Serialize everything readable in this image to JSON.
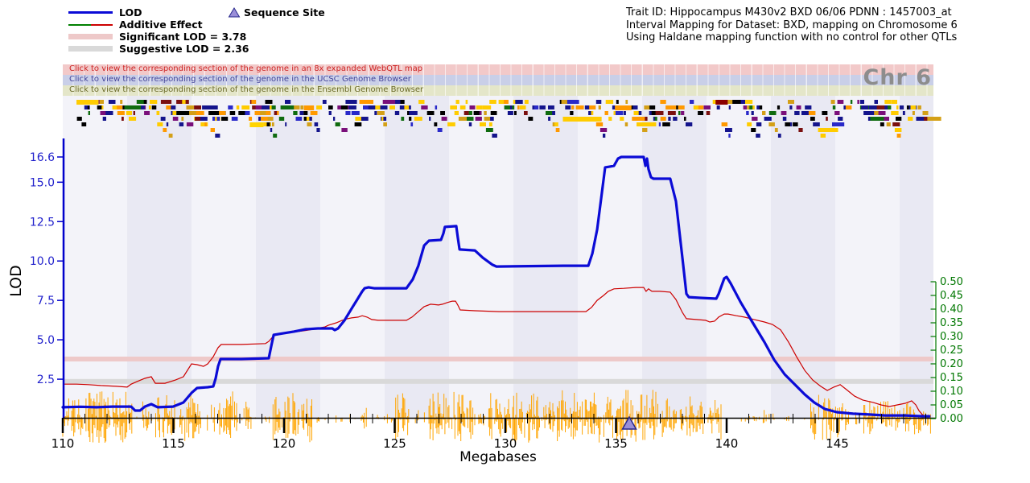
{
  "header": {
    "trait_line1": "Trait ID: Hippocampus M430v2 BXD 06/06 PDNN : 1457003_at",
    "trait_line2": "Interval Mapping for Dataset: BXD, mapping on Chromosome 6",
    "trait_line3": "Using Haldane mapping function with no control for other QTLs"
  },
  "legend": {
    "lod_label": "LOD",
    "additive_label": "Additive Effect",
    "significant_label": "Significant LOD = 3.78",
    "suggestive_label": "Suggestive LOD = 2.36",
    "sequence_site_label": "Sequence Site"
  },
  "banners": [
    {
      "text": "Click to view the corresponding section of the genome in an 8x expanded WebQTL map",
      "bg": "#f2c9c9",
      "color": "#cc2222"
    },
    {
      "text": "Click to view the corresponding section of the genome in the UCSC Genome Browser",
      "bg": "#c9cfe8",
      "color": "#444499"
    },
    {
      "text": "Click to view the corresponding section of the genome in the Ensembl Genome Browser",
      "bg": "#e4e6c9",
      "color": "#6b6b2a"
    }
  ],
  "chr_label": "Chr 6",
  "colors": {
    "lod": "#0b0bd6",
    "additive": "#cc0000",
    "additive_legend_left": "#008000",
    "significant_band": "#eec9c9",
    "suggestive_band": "#d9d9d9",
    "snp_track": "#ffa500",
    "lod_axis_labels": "#2222cc",
    "additive_axis": "#007700",
    "x_axis": "#000000",
    "triangle_fill": "#9a8fd8",
    "triangle_stroke": "#28288c",
    "band_light": "#f3f3f9",
    "band_dark": "#e9e9f3"
  },
  "chart_data": {
    "type": "line",
    "xlabel": "Megabases",
    "ylabel_left": "LOD",
    "x_range_mb": [
      110,
      149.35
    ],
    "x_major_ticks": [
      110,
      115,
      120,
      125,
      130,
      135,
      140,
      145
    ],
    "lod_ticks": [
      2.5,
      5.0,
      7.5,
      10.0,
      12.5,
      15.0,
      16.6
    ],
    "additive_ticks": [
      0.0,
      0.05,
      0.1,
      0.15,
      0.2,
      0.25,
      0.3,
      0.35,
      0.4,
      0.45,
      0.5
    ],
    "significant_lod": 3.78,
    "suggestive_lod": 2.36,
    "max_lod": 16.6,
    "sequence_site_mb": 135.6,
    "series": [
      {
        "name": "LOD",
        "axis": "left",
        "points": [
          [
            110,
            0.72
          ],
          [
            110.8,
            0.75
          ],
          [
            111.53,
            0.72
          ],
          [
            112.25,
            0.76
          ],
          [
            113.09,
            0.76
          ],
          [
            113.27,
            0.51
          ],
          [
            113.49,
            0.51
          ],
          [
            113.71,
            0.76
          ],
          [
            114,
            0.92
          ],
          [
            114.29,
            0.72
          ],
          [
            114.98,
            0.76
          ],
          [
            115.45,
            1.02
          ],
          [
            115.82,
            1.63
          ],
          [
            116.07,
            1.94
          ],
          [
            116.55,
            1.99
          ],
          [
            116.8,
            2.04
          ],
          [
            116.91,
            2.55
          ],
          [
            117.02,
            3.32
          ],
          [
            117.13,
            3.78
          ],
          [
            118.07,
            3.78
          ],
          [
            119.31,
            3.83
          ],
          [
            119.42,
            4.6
          ],
          [
            119.53,
            5.31
          ],
          [
            119.96,
            5.41
          ],
          [
            120.44,
            5.52
          ],
          [
            120.98,
            5.67
          ],
          [
            121.53,
            5.72
          ],
          [
            122.18,
            5.72
          ],
          [
            122.29,
            5.62
          ],
          [
            122.44,
            5.72
          ],
          [
            122.73,
            6.23
          ],
          [
            123.02,
            6.9
          ],
          [
            123.31,
            7.56
          ],
          [
            123.53,
            8.07
          ],
          [
            123.64,
            8.27
          ],
          [
            123.82,
            8.33
          ],
          [
            124.07,
            8.27
          ],
          [
            125.53,
            8.27
          ],
          [
            125.82,
            8.84
          ],
          [
            126.07,
            9.7
          ],
          [
            126.33,
            10.98
          ],
          [
            126.55,
            11.29
          ],
          [
            127.09,
            11.34
          ],
          [
            127.2,
            11.75
          ],
          [
            127.27,
            12.16
          ],
          [
            127.78,
            12.21
          ],
          [
            127.85,
            11.49
          ],
          [
            127.93,
            10.73
          ],
          [
            128.62,
            10.67
          ],
          [
            128.98,
            10.21
          ],
          [
            129.42,
            9.76
          ],
          [
            129.6,
            9.65
          ],
          [
            132.62,
            9.7
          ],
          [
            133.75,
            9.7
          ],
          [
            133.93,
            10.47
          ],
          [
            134.15,
            12
          ],
          [
            134.36,
            14.3
          ],
          [
            134.51,
            15.94
          ],
          [
            134.73,
            15.99
          ],
          [
            134.91,
            16.04
          ],
          [
            135.09,
            16.5
          ],
          [
            135.24,
            16.6
          ],
          [
            136.25,
            16.6
          ],
          [
            136.33,
            16.04
          ],
          [
            136.4,
            16.5
          ],
          [
            136.47,
            15.83
          ],
          [
            136.58,
            15.32
          ],
          [
            136.69,
            15.22
          ],
          [
            137.45,
            15.22
          ],
          [
            137.71,
            13.79
          ],
          [
            138,
            10.21
          ],
          [
            138.18,
            7.92
          ],
          [
            138.29,
            7.71
          ],
          [
            138.8,
            7.66
          ],
          [
            139.53,
            7.61
          ],
          [
            139.64,
            7.92
          ],
          [
            139.89,
            8.89
          ],
          [
            140,
            8.99
          ],
          [
            140.18,
            8.58
          ],
          [
            140.62,
            7.41
          ],
          [
            141.16,
            6.13
          ],
          [
            141.71,
            4.85
          ],
          [
            142.15,
            3.73
          ],
          [
            142.62,
            2.81
          ],
          [
            143.09,
            2.15
          ],
          [
            143.53,
            1.53
          ],
          [
            143.96,
            1.02
          ],
          [
            144.44,
            0.61
          ],
          [
            144.98,
            0.41
          ],
          [
            145.71,
            0.31
          ],
          [
            146.44,
            0.26
          ],
          [
            147.16,
            0.2
          ],
          [
            148.07,
            0.2
          ],
          [
            148.91,
            0.15
          ],
          [
            149.16,
            0.15
          ]
        ]
      },
      {
        "name": "Additive Effect",
        "axis": "right",
        "points": [
          [
            110,
            0.126
          ],
          [
            110.62,
            0.126
          ],
          [
            111.16,
            0.124
          ],
          [
            111.71,
            0.121
          ],
          [
            112.44,
            0.118
          ],
          [
            112.91,
            0.115
          ],
          [
            113.09,
            0.126
          ],
          [
            113.35,
            0.135
          ],
          [
            113.71,
            0.147
          ],
          [
            114,
            0.153
          ],
          [
            114.18,
            0.129
          ],
          [
            114.62,
            0.129
          ],
          [
            115.09,
            0.141
          ],
          [
            115.45,
            0.153
          ],
          [
            115.82,
            0.2
          ],
          [
            116.07,
            0.197
          ],
          [
            116.36,
            0.191
          ],
          [
            116.55,
            0.2
          ],
          [
            116.8,
            0.226
          ],
          [
            117.02,
            0.259
          ],
          [
            117.16,
            0.271
          ],
          [
            118.07,
            0.271
          ],
          [
            119.16,
            0.274
          ],
          [
            119.31,
            0.282
          ],
          [
            119.53,
            0.303
          ],
          [
            120.07,
            0.312
          ],
          [
            120.62,
            0.318
          ],
          [
            121.16,
            0.324
          ],
          [
            121.64,
            0.332
          ],
          [
            121.85,
            0.335
          ],
          [
            122,
            0.341
          ],
          [
            122.36,
            0.35
          ],
          [
            122.62,
            0.359
          ],
          [
            122.87,
            0.365
          ],
          [
            123.05,
            0.368
          ],
          [
            123.35,
            0.371
          ],
          [
            123.53,
            0.376
          ],
          [
            123.75,
            0.371
          ],
          [
            123.96,
            0.362
          ],
          [
            124.25,
            0.359
          ],
          [
            125.53,
            0.359
          ],
          [
            125.78,
            0.371
          ],
          [
            126.07,
            0.391
          ],
          [
            126.33,
            0.409
          ],
          [
            126.62,
            0.418
          ],
          [
            126.98,
            0.415
          ],
          [
            127.16,
            0.418
          ],
          [
            127.38,
            0.424
          ],
          [
            127.6,
            0.429
          ],
          [
            127.75,
            0.429
          ],
          [
            127.85,
            0.415
          ],
          [
            127.96,
            0.397
          ],
          [
            128.62,
            0.394
          ],
          [
            129.71,
            0.391
          ],
          [
            131.16,
            0.391
          ],
          [
            132.62,
            0.391
          ],
          [
            133.64,
            0.391
          ],
          [
            133.89,
            0.406
          ],
          [
            134.15,
            0.432
          ],
          [
            134.44,
            0.45
          ],
          [
            134.65,
            0.465
          ],
          [
            134.91,
            0.474
          ],
          [
            135.35,
            0.476
          ],
          [
            135.89,
            0.479
          ],
          [
            136.25,
            0.479
          ],
          [
            136.36,
            0.465
          ],
          [
            136.47,
            0.474
          ],
          [
            136.62,
            0.465
          ],
          [
            136.98,
            0.465
          ],
          [
            137.45,
            0.462
          ],
          [
            137.71,
            0.435
          ],
          [
            138,
            0.388
          ],
          [
            138.18,
            0.365
          ],
          [
            138.62,
            0.362
          ],
          [
            139.05,
            0.359
          ],
          [
            139.24,
            0.353
          ],
          [
            139.45,
            0.356
          ],
          [
            139.64,
            0.371
          ],
          [
            139.89,
            0.382
          ],
          [
            140.07,
            0.382
          ],
          [
            140.44,
            0.376
          ],
          [
            140.8,
            0.371
          ],
          [
            141.24,
            0.362
          ],
          [
            141.71,
            0.353
          ],
          [
            142.07,
            0.344
          ],
          [
            142.44,
            0.324
          ],
          [
            142.8,
            0.279
          ],
          [
            143.16,
            0.226
          ],
          [
            143.53,
            0.176
          ],
          [
            143.89,
            0.141
          ],
          [
            144.25,
            0.118
          ],
          [
            144.55,
            0.103
          ],
          [
            144.84,
            0.115
          ],
          [
            145.13,
            0.124
          ],
          [
            145.42,
            0.106
          ],
          [
            145.78,
            0.082
          ],
          [
            146.15,
            0.068
          ],
          [
            146.62,
            0.059
          ],
          [
            146.98,
            0.05
          ],
          [
            147.35,
            0.044
          ],
          [
            147.71,
            0.05
          ],
          [
            148.07,
            0.056
          ],
          [
            148.36,
            0.065
          ],
          [
            148.55,
            0.05
          ],
          [
            148.69,
            0.029
          ],
          [
            148.84,
            0.015
          ],
          [
            148.95,
            0.009
          ]
        ]
      }
    ],
    "snp_track_segments": [
      [
        110,
        110.95,
        26,
        0.85
      ],
      [
        111.05,
        113.15,
        34,
        0.9
      ],
      [
        113.3,
        114.05,
        22,
        0.7
      ],
      [
        114.2,
        115.1,
        30,
        0.8
      ],
      [
        115.2,
        116.25,
        34,
        0.85
      ],
      [
        116.4,
        116.9,
        18,
        0.5
      ],
      [
        117,
        117.95,
        34,
        0.85
      ],
      [
        118.1,
        118.55,
        22,
        0.7
      ],
      [
        118.7,
        119.4,
        9,
        0.3
      ],
      [
        119.5,
        120.3,
        30,
        0.8
      ],
      [
        120.4,
        121.3,
        34,
        0.85
      ],
      [
        121.45,
        122.2,
        13,
        0.4
      ],
      [
        122.35,
        123.3,
        6,
        0.22
      ],
      [
        123.4,
        123.85,
        15,
        0.5
      ],
      [
        123.95,
        124.9,
        7,
        0.28
      ],
      [
        125,
        125.65,
        32,
        0.85
      ],
      [
        125.8,
        126.45,
        12,
        0.4
      ],
      [
        126.55,
        128.65,
        34,
        0.9
      ],
      [
        128.75,
        129.15,
        16,
        0.55
      ],
      [
        129.25,
        131.55,
        34,
        0.9
      ],
      [
        131.65,
        132.25,
        22,
        0.7
      ],
      [
        132.35,
        134.35,
        36,
        0.9
      ],
      [
        134.45,
        135.35,
        30,
        0.85
      ],
      [
        135.45,
        136.9,
        36,
        0.9
      ],
      [
        137.05,
        137.75,
        26,
        0.8
      ],
      [
        137.9,
        139.75,
        30,
        0.85
      ],
      [
        139.9,
        141.55,
        4,
        0.12
      ],
      [
        141.65,
        142.25,
        11,
        0.38
      ],
      [
        142.35,
        143.7,
        4,
        0.12
      ],
      [
        143.8,
        145.55,
        30,
        0.85
      ],
      [
        145.7,
        146.1,
        9,
        0.3
      ],
      [
        146.2,
        149.25,
        22,
        0.78
      ]
    ]
  },
  "gene_track": {
    "palette": [
      "#14148c",
      "#14148c",
      "#000000",
      "#000000",
      "#ffcc00",
      "#ffcc00",
      "#ff9900",
      "#7a0f7a",
      "#0f6b0f",
      "#7a0f0f",
      "#2929c9",
      "#ffcc00",
      "#14148c",
      "#d4a017"
    ],
    "featured_bars": [
      {
        "mb": 110.62,
        "row": 0,
        "w_mb": 1.0,
        "color": "#ffcc00"
      },
      {
        "mb": 118.45,
        "row": 4,
        "w_mb": 0.62,
        "color": "#ffd400"
      },
      {
        "mb": 120.9,
        "row": 1,
        "w_mb": 0.45,
        "color": "#ff9900"
      },
      {
        "mb": 132.6,
        "row": 3,
        "w_mb": 1.75,
        "color": "#ffcc00"
      },
      {
        "mb": 134.95,
        "row": 1,
        "w_mb": 0.75,
        "color": "#ff9900"
      },
      {
        "mb": 139.5,
        "row": 0,
        "w_mb": 0.55,
        "color": "#8b0000"
      }
    ]
  }
}
